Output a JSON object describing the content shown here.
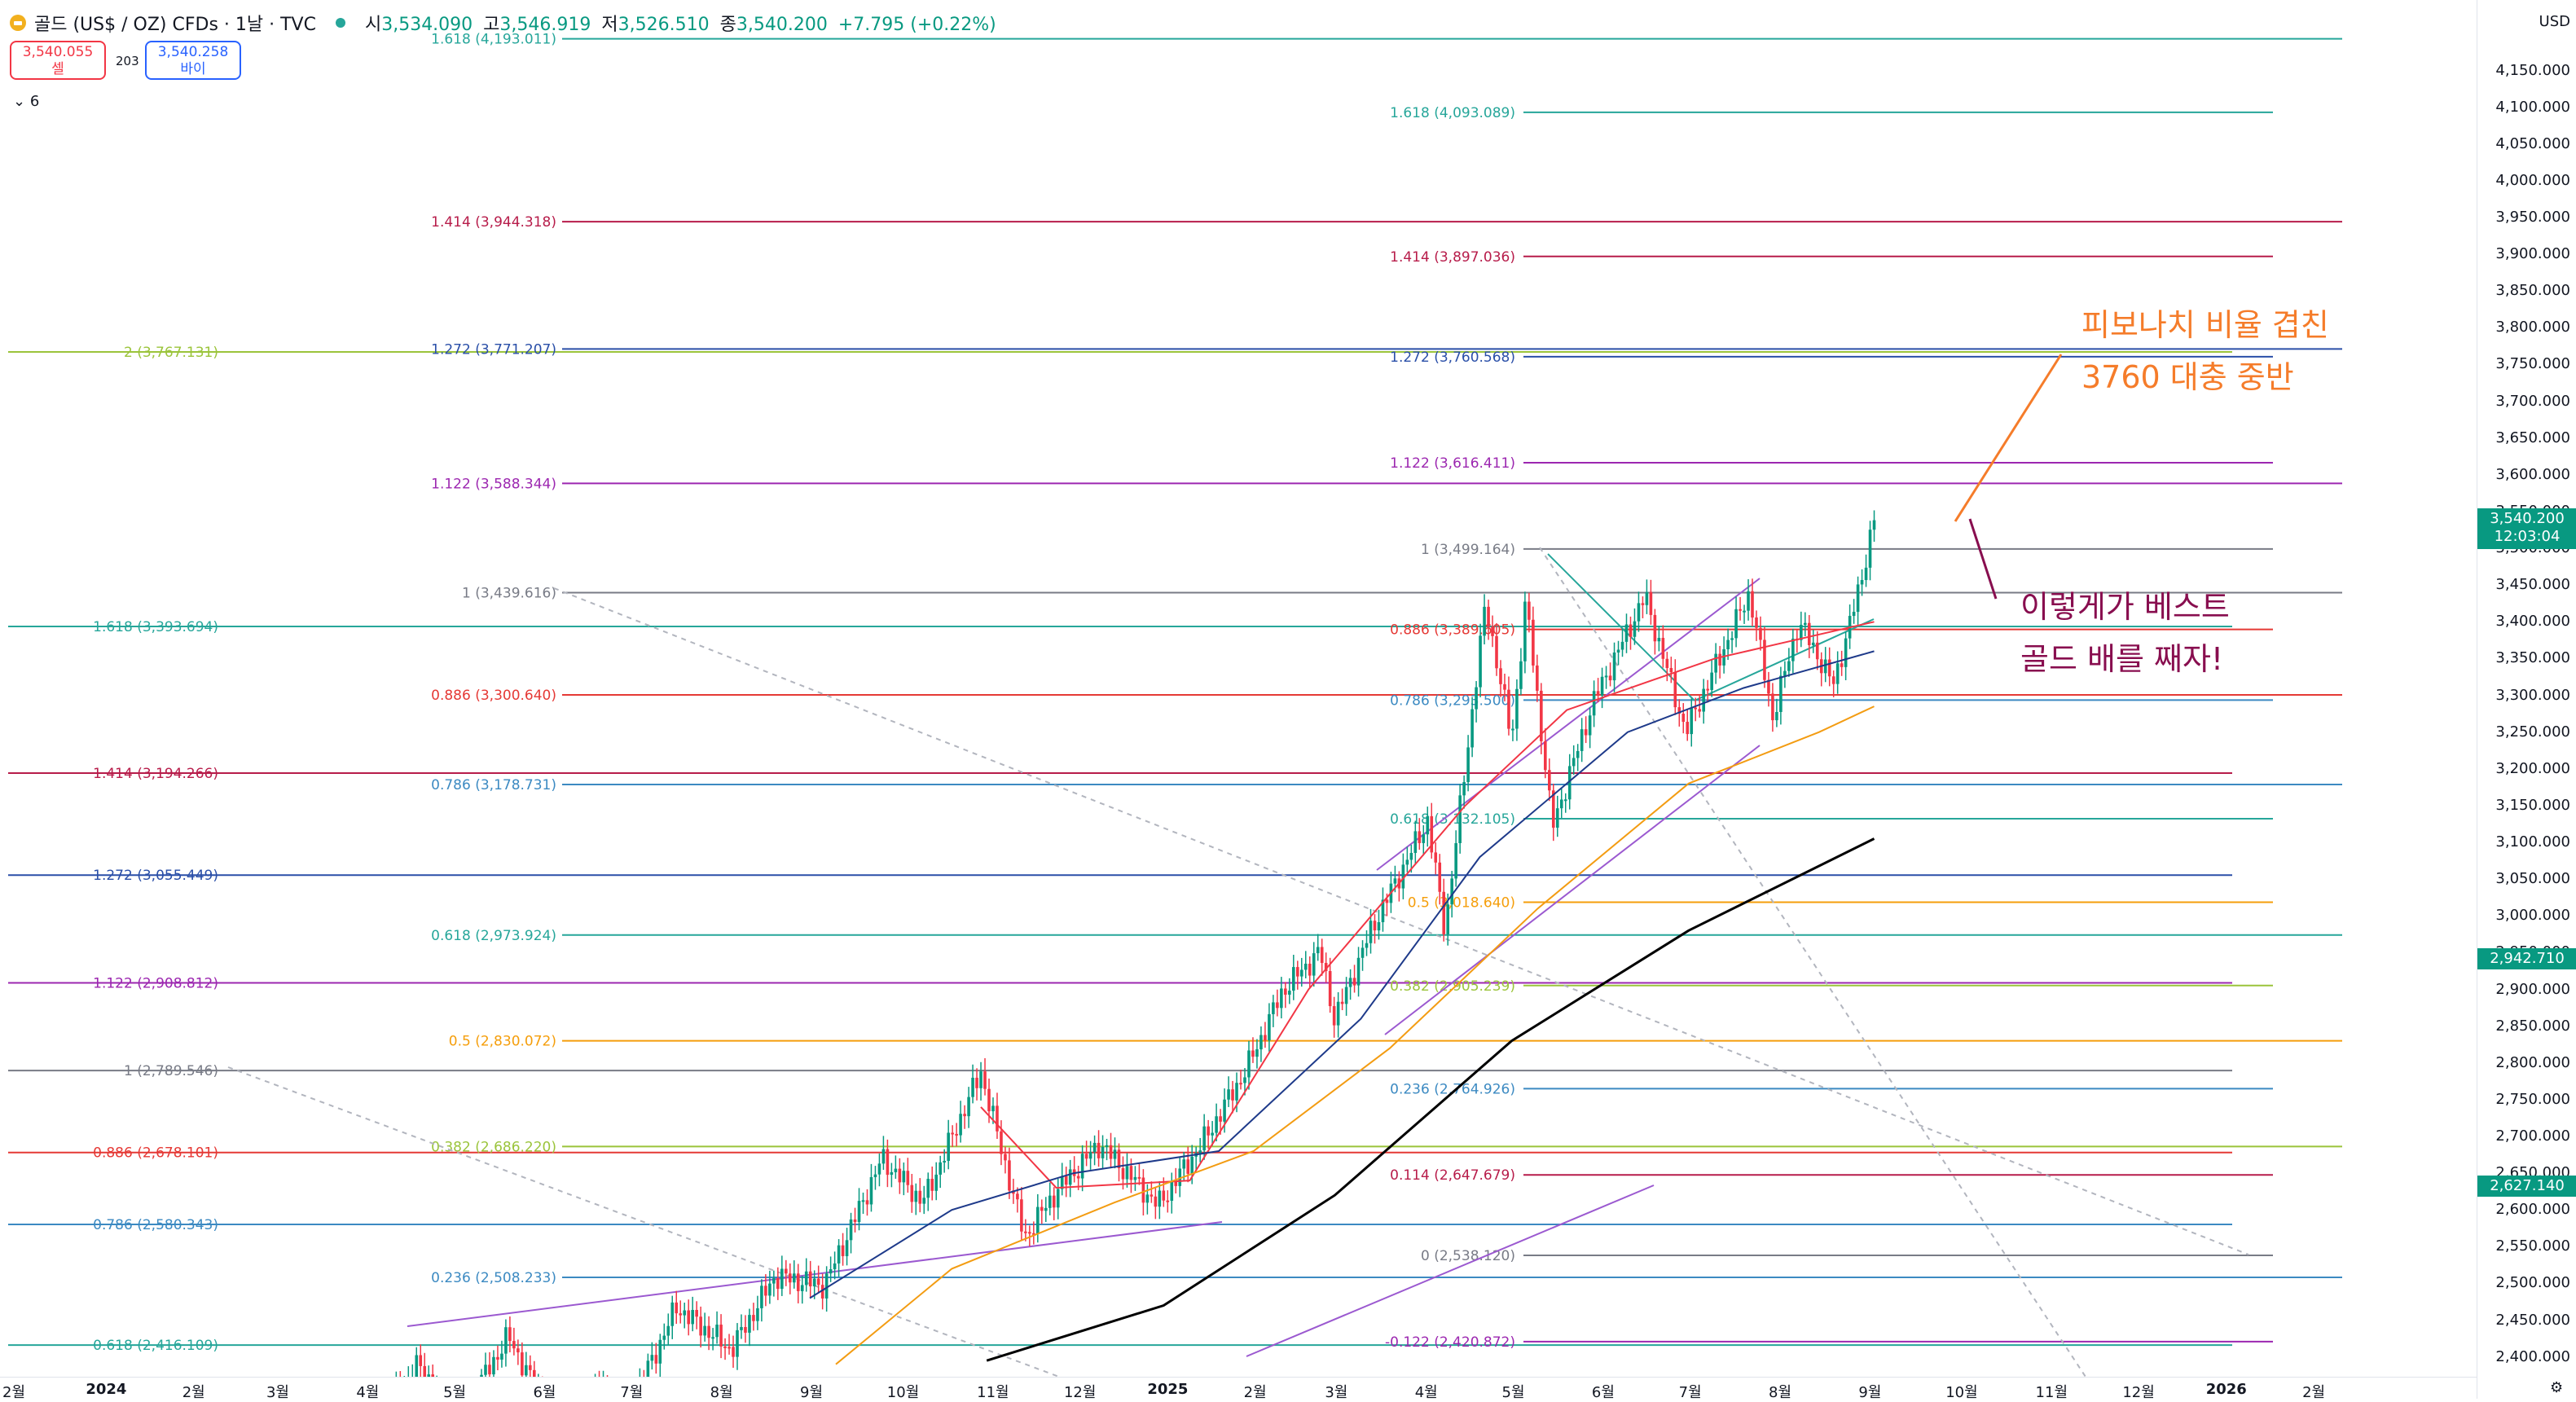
{
  "header": {
    "symbol": "골드 (US$ / OZ) CFDs · 1날 · TVC",
    "open_label": "시",
    "open": "3,534.090",
    "high_label": "고",
    "high": "3,546.919",
    "low_label": "저",
    "low": "3,526.510",
    "close_label": "종",
    "close": "3,540.200",
    "change": "+7.795 (+0.22%)"
  },
  "trade": {
    "sell_price": "3,540.055",
    "sell_label": "셀",
    "spread": "203",
    "buy_price": "3,540.258",
    "buy_label": "바이"
  },
  "indicators_toggle": "6",
  "price_axis": {
    "currency": "USD",
    "labels": [
      "4,150.000",
      "4,100.000",
      "4,050.000",
      "4,000.000",
      "3,950.000",
      "3,900.000",
      "3,850.000",
      "3,800.000",
      "3,750.000",
      "3,700.000",
      "3,650.000",
      "3,600.000",
      "3,550.000",
      "3,500.000",
      "3,450.000",
      "3,400.000",
      "3,350.000",
      "3,300.000",
      "3,250.000",
      "3,200.000",
      "3,150.000",
      "3,100.000",
      "3,050.000",
      "3,000.000",
      "2,950.000",
      "2,900.000",
      "2,850.000",
      "2,800.000",
      "2,750.000",
      "2,700.000",
      "2,650.000",
      "2,600.000",
      "2,550.000",
      "2,500.000",
      "2,450.000",
      "2,400.000"
    ],
    "current_price": "3,540.200",
    "countdown": "12:03:04",
    "marker_1": "2,942.710",
    "marker_2": "2,627.140"
  },
  "time_axis": {
    "labels": [
      "2월",
      "2024",
      "2월",
      "3월",
      "4월",
      "5월",
      "6월",
      "7월",
      "8월",
      "9월",
      "10월",
      "11월",
      "12월",
      "2025",
      "2월",
      "3월",
      "4월",
      "5월",
      "6월",
      "7월",
      "8월",
      "9월",
      "10월",
      "11월",
      "12월",
      "2026",
      "2월"
    ]
  },
  "colors": {
    "up": "#089981",
    "down": "#f23645",
    "accent_orange": "#f57c2a",
    "accent_maroon": "#880e4f"
  },
  "chart_data": {
    "type": "candlestick",
    "symbol": "골드 (US$ / OZ) CFDs",
    "interval": "1날",
    "ylim": [
      2385,
      4185
    ],
    "fib_set_left": [
      {
        "label": "1.618 (4,193.011)",
        "value": 4193.011
      },
      {
        "label": "1.414 (3,944.318)",
        "value": 3944.318
      },
      {
        "label": "1.272 (3,771.207)",
        "value": 3771.207
      },
      {
        "label": "1.122 (3,588.344)",
        "value": 3588.344
      },
      {
        "label": "1 (3,439.616)",
        "value": 3439.616
      },
      {
        "label": "0.886 (3,300.640)",
        "value": 3300.64
      },
      {
        "label": "0.786 (3,178.731)",
        "value": 3178.731
      },
      {
        "label": "0.618 (2,973.924)",
        "value": 2973.924
      },
      {
        "label": "0.5 (2,830.072)",
        "value": 2830.072
      },
      {
        "label": "0.382 (2,686.220)",
        "value": 2686.22
      },
      {
        "label": "0.236 (2,508.233)",
        "value": 2508.233
      }
    ],
    "fib_set_far_left": [
      {
        "label": "2 (3,767.131)",
        "value": 3767.131
      },
      {
        "label": "1.618 (3,393.694)",
        "value": 3393.694
      },
      {
        "label": "1.414 (3,194.266)",
        "value": 3194.266
      },
      {
        "label": "1.272 (3,055.449)",
        "value": 3055.449
      },
      {
        "label": "1.122 (2,908.812)",
        "value": 2908.812
      },
      {
        "label": "1 (2,789.546)",
        "value": 2789.546
      },
      {
        "label": "0.886 (2,678.101)",
        "value": 2678.101
      },
      {
        "label": "0.786 (2,580.343)",
        "value": 2580.343
      },
      {
        "label": "0.618 (2,416.109)",
        "value": 2416.109
      }
    ],
    "fib_set_right": [
      {
        "label": "1.618 (4,093.089)",
        "value": 4093.089
      },
      {
        "label": "1.414 (3,897.036)",
        "value": 3897.036
      },
      {
        "label": "1.272 (3,760.568)",
        "value": 3760.568
      },
      {
        "label": "1.122 (3,616.411)",
        "value": 3616.411
      },
      {
        "label": "1 (3,499.164)",
        "value": 3499.164
      },
      {
        "label": "0.886 (3,389.605)",
        "value": 3389.605
      },
      {
        "label": "0.786 (3,293.500)",
        "value": 3293.5
      },
      {
        "label": "0.618 (3,132.105)",
        "value": 3132.105
      },
      {
        "label": "0.5 (3,018.640)",
        "value": 3018.64
      },
      {
        "label": "0.382 (2,905.239)",
        "value": 2905.239
      },
      {
        "label": "0.236 (2,764.926)",
        "value": 2764.926
      },
      {
        "label": "0.114 (2,647.679)",
        "value": 2647.679
      },
      {
        "label": "0 (2,538.120)",
        "value": 2538.12
      },
      {
        "label": "-0.122 (2,420.872)",
        "value": 2420.872
      }
    ],
    "close_path": [
      [
        "2024-04-10",
        2345
      ],
      [
        "2024-04-20",
        2392
      ],
      [
        "2024-05-01",
        2303
      ],
      [
        "2024-05-20",
        2428
      ],
      [
        "2024-06-07",
        2294
      ],
      [
        "2024-06-20",
        2360
      ],
      [
        "2024-07-01",
        2330
      ],
      [
        "2024-07-17",
        2468
      ],
      [
        "2024-08-05",
        2410
      ],
      [
        "2024-08-20",
        2510
      ],
      [
        "2024-09-06",
        2497
      ],
      [
        "2024-09-26",
        2670
      ],
      [
        "2024-10-10",
        2610
      ],
      [
        "2024-10-30",
        2788
      ],
      [
        "2024-11-14",
        2563
      ],
      [
        "2024-11-25",
        2625
      ],
      [
        "2024-12-10",
        2690
      ],
      [
        "2024-12-30",
        2606
      ],
      [
        "2025-01-15",
        2695
      ],
      [
        "2025-01-30",
        2795
      ],
      [
        "2025-02-11",
        2898
      ],
      [
        "2025-02-24",
        2952
      ],
      [
        "2025-03-01",
        2858
      ],
      [
        "2025-03-14",
        2985
      ],
      [
        "2025-04-02",
        3130
      ],
      [
        "2025-04-08",
        2980
      ],
      [
        "2025-04-22",
        3425
      ],
      [
        "2025-05-01",
        3240
      ],
      [
        "2025-05-06",
        3430
      ],
      [
        "2025-05-15",
        3120
      ],
      [
        "2025-05-29",
        3290
      ],
      [
        "2025-06-16",
        3435
      ],
      [
        "2025-06-30",
        3250
      ],
      [
        "2025-07-22",
        3440
      ],
      [
        "2025-07-30",
        3270
      ],
      [
        "2025-08-08",
        3400
      ],
      [
        "2025-08-20",
        3315
      ],
      [
        "2025-08-29",
        3448
      ],
      [
        "2025-09-03",
        3540.2
      ]
    ],
    "moving_averages": [
      {
        "color": "#f23645",
        "points": [
          [
            "2024-10-30",
            2740
          ],
          [
            "2024-11-25",
            2630
          ],
          [
            "2025-01-10",
            2640
          ],
          [
            "2025-02-20",
            2900
          ],
          [
            "2025-04-15",
            3150
          ],
          [
            "2025-05-20",
            3280
          ],
          [
            "2025-07-10",
            3350
          ],
          [
            "2025-09-03",
            3400
          ]
        ]
      },
      {
        "color": "#1e3a8a",
        "points": [
          [
            "2024-09-01",
            2480
          ],
          [
            "2024-10-20",
            2600
          ],
          [
            "2024-12-01",
            2650
          ],
          [
            "2025-01-20",
            2680
          ],
          [
            "2025-03-10",
            2860
          ],
          [
            "2025-04-20",
            3080
          ],
          [
            "2025-06-10",
            3250
          ],
          [
            "2025-07-20",
            3310
          ],
          [
            "2025-09-03",
            3360
          ]
        ]
      },
      {
        "color": "#f39c12",
        "points": [
          [
            "2024-09-10",
            2390
          ],
          [
            "2024-10-20",
            2520
          ],
          [
            "2024-12-15",
            2610
          ],
          [
            "2025-02-01",
            2680
          ],
          [
            "2025-03-20",
            2820
          ],
          [
            "2025-05-10",
            3010
          ],
          [
            "2025-07-01",
            3180
          ],
          [
            "2025-08-15",
            3250
          ],
          [
            "2025-09-03",
            3285
          ]
        ]
      },
      {
        "color": "#000000",
        "points": [
          [
            "2024-11-01",
            2395
          ],
          [
            "2025-01-01",
            2470
          ],
          [
            "2025-03-01",
            2620
          ],
          [
            "2025-05-01",
            2830
          ],
          [
            "2025-07-01",
            2980
          ],
          [
            "2025-09-03",
            3105
          ]
        ]
      }
    ]
  },
  "annotations": {
    "orange_line1": "피보나치 비율 겹친",
    "orange_line2": "3760 대충 중반",
    "maroon_line1": "이렇게가 베스트",
    "maroon_line2": "골드 배를 째자!"
  }
}
